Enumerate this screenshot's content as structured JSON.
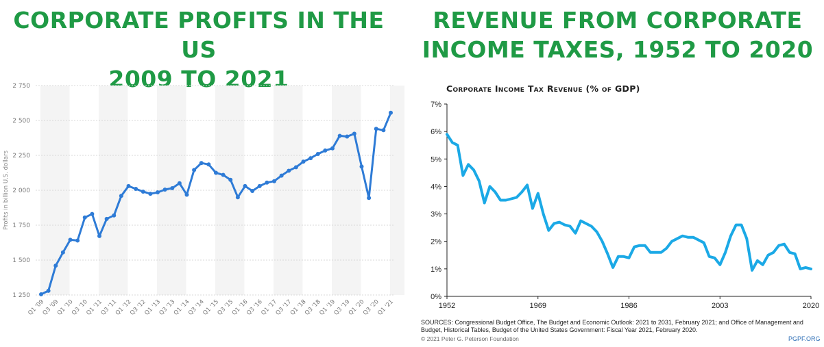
{
  "banners": {
    "left": [
      "CORPORATE PROFITS IN THE US",
      "2009 TO 2021"
    ],
    "right": [
      "REVENUE FROM CORPORATE",
      "INCOME TAXES, 1952 TO 2020"
    ]
  },
  "colors": {
    "banner": "#1f9a45",
    "left_line": "#2e7bd6",
    "right_line": "#1ba9e6"
  },
  "chart_data": [
    {
      "type": "line",
      "title": "CORPORATE PROFITS IN THE US 2009 TO 2021",
      "ylabel": "Profits in billion U.S. dollars",
      "ylim": [
        1250,
        2750
      ],
      "yticks": [
        1250,
        1500,
        1750,
        2000,
        2250,
        2500,
        2750
      ],
      "ytick_labels": [
        "1 250",
        "1 500",
        "1 750",
        "2 000",
        "2 250",
        "2 500",
        "2 750"
      ],
      "xtick_labels": [
        "Q1 '09",
        "Q3 '09",
        "Q1 '10",
        "Q3 '10",
        "Q1 '11",
        "Q3 '11",
        "Q1 '12",
        "Q3 '12",
        "Q1 '13",
        "Q3 '13",
        "Q1 '14",
        "Q3 '14",
        "Q1 '15",
        "Q3 '15",
        "Q1 '16",
        "Q3 '16",
        "Q1 '17",
        "Q3 '17",
        "Q1 '18",
        "Q3 '18",
        "Q1 '19",
        "Q3 '19",
        "Q1 '20",
        "Q3 '20",
        "Q1 '21"
      ],
      "grid": true,
      "series": [
        {
          "values": [
            1255,
            1280,
            1460,
            1555,
            1645,
            1640,
            1805,
            1830,
            1672,
            1795,
            1820,
            1960,
            2030,
            2010,
            1990,
            1975,
            1985,
            2005,
            2015,
            2050,
            1968,
            2145,
            2195,
            2185,
            2125,
            2110,
            2075,
            1950,
            2030,
            1995,
            2030,
            2055,
            2065,
            2105,
            2140,
            2165,
            2205,
            2230,
            2260,
            2285,
            2300,
            2390,
            2385,
            2405,
            2170,
            1945,
            2440,
            2430,
            2555
          ]
        }
      ]
    },
    {
      "type": "line",
      "title": "Corporate Income Tax Revenue (% of GDP)",
      "ylim": [
        0,
        7
      ],
      "yticks": [
        0,
        1,
        2,
        3,
        4,
        5,
        6,
        7
      ],
      "ytick_labels": [
        "0%",
        "1%",
        "2%",
        "3%",
        "4%",
        "5%",
        "6%",
        "7%"
      ],
      "xticks": [
        1952,
        1969,
        1986,
        2003,
        2020
      ],
      "xlim": [
        1952,
        2020
      ],
      "grid": false,
      "series": [
        {
          "x": [
            1952,
            1953,
            1954,
            1955,
            1956,
            1957,
            1958,
            1959,
            1960,
            1961,
            1962,
            1963,
            1964,
            1965,
            1966,
            1967,
            1968,
            1969,
            1970,
            1971,
            1972,
            1973,
            1974,
            1975,
            1976,
            1977,
            1978,
            1979,
            1980,
            1981,
            1982,
            1983,
            1984,
            1985,
            1986,
            1987,
            1988,
            1989,
            1990,
            1991,
            1992,
            1993,
            1994,
            1995,
            1996,
            1997,
            1998,
            1999,
            2000,
            2001,
            2002,
            2003,
            2004,
            2005,
            2006,
            2007,
            2008,
            2009,
            2010,
            2011,
            2012,
            2013,
            2014,
            2015,
            2016,
            2017,
            2018,
            2019,
            2020
          ],
          "y": [
            5.9,
            5.6,
            5.5,
            4.4,
            4.8,
            4.6,
            4.2,
            3.4,
            4.0,
            3.8,
            3.5,
            3.5,
            3.55,
            3.6,
            3.8,
            4.05,
            3.2,
            3.75,
            3.0,
            2.4,
            2.65,
            2.7,
            2.6,
            2.55,
            2.3,
            2.75,
            2.65,
            2.55,
            2.35,
            2.0,
            1.55,
            1.05,
            1.45,
            1.45,
            1.4,
            1.8,
            1.85,
            1.85,
            1.6,
            1.6,
            1.6,
            1.75,
            2.0,
            2.1,
            2.2,
            2.15,
            2.15,
            2.05,
            1.95,
            1.45,
            1.4,
            1.15,
            1.6,
            2.2,
            2.6,
            2.6,
            2.1,
            0.95,
            1.3,
            1.15,
            1.5,
            1.6,
            1.85,
            1.9,
            1.6,
            1.55,
            1.0,
            1.05,
            1.0
          ]
        }
      ]
    }
  ],
  "right_chart": {
    "title": "Corporate Income Tax Revenue (% of GDP)",
    "sources": "SOURCES: Congressional Budget Office, The Budget and Economic Outlook: 2021 to 2031, February 2021; and Office of Management and Budget, Historical Tables, Budget of the United States Government: Fiscal Year 2021, February 2020.",
    "copyright": "© 2021 Peter G. Peterson Foundation",
    "brand": "PGPF.ORG"
  }
}
